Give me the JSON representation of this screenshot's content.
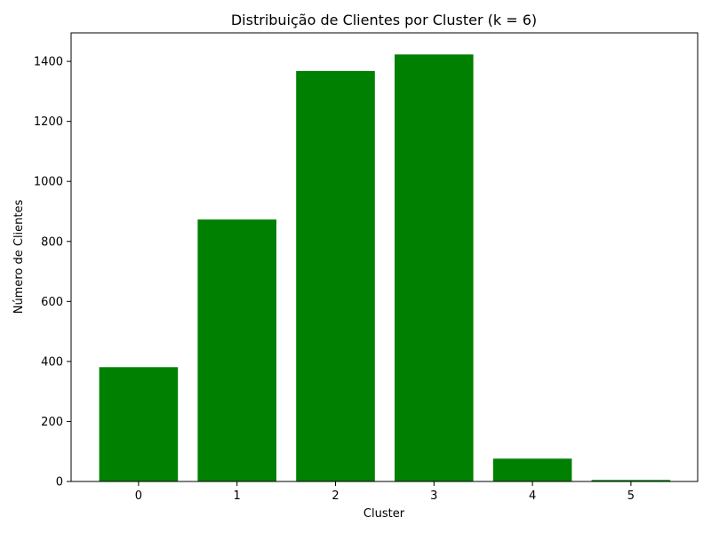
{
  "chart_data": {
    "type": "bar",
    "title": "Distribuição de Clientes por Cluster (k = 6)",
    "xlabel": "Cluster",
    "ylabel": "Número de Clientes",
    "categories": [
      "0",
      "1",
      "2",
      "3",
      "4",
      "5"
    ],
    "values": [
      381,
      873,
      1368,
      1423,
      76,
      5
    ],
    "ylim": [
      0,
      1495
    ],
    "yticks": [
      0,
      200,
      400,
      600,
      800,
      1000,
      1200,
      1400
    ],
    "yticks_labels": [
      "0",
      "200",
      "400",
      "600",
      "800",
      "1000",
      "1200",
      "1400"
    ],
    "bar_color": "#008000",
    "grid": false,
    "legend": "none"
  }
}
